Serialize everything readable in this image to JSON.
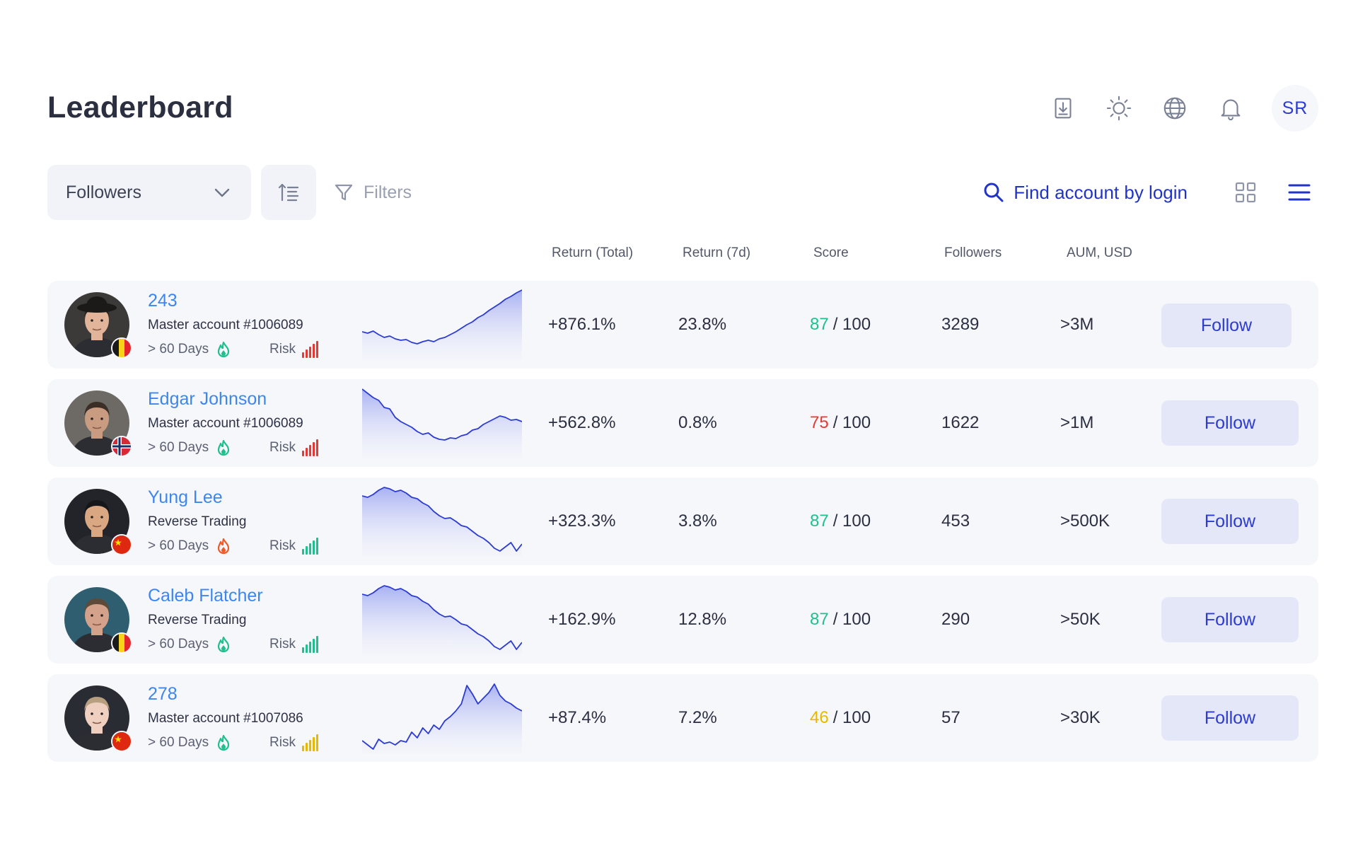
{
  "page": {
    "title": "Leaderboard"
  },
  "header": {
    "icons": [
      "download-icon",
      "sun-icon",
      "globe-icon",
      "bell-icon"
    ],
    "user_initials": "SR"
  },
  "toolbar": {
    "sort_by": "Followers",
    "filters_label": "Filters",
    "search_label": "Find account by login"
  },
  "columns": {
    "return_total": "Return (Total)",
    "return_7d": "Return (7d)",
    "score": "Score",
    "followers": "Followers",
    "aum": "AUM, USD"
  },
  "colors": {
    "accent": "#2c3bd1",
    "link": "#3d86f0",
    "score_good": "#1fbf8f",
    "score_bad": "#e53935",
    "score_mid": "#e6b800",
    "flame_good": "#1fbf8f",
    "flame_hot": "#f05a28"
  },
  "traders": [
    {
      "name": "243",
      "subtitle": "Master account #1006089",
      "days": "> 60 Days",
      "risk_label": "Risk",
      "risk_level": "high",
      "flame": "good",
      "flag": "belgium",
      "return_total": "+876.1%",
      "return_7d": "23.8%",
      "score": "87",
      "score_max": "/ 100",
      "score_status": "good",
      "followers": "3289",
      "aum": ">3M",
      "follow_label": "Follow",
      "spark": [
        60,
        62,
        59,
        64,
        68,
        66,
        70,
        72,
        71,
        75,
        77,
        74,
        72,
        74,
        70,
        68,
        64,
        60,
        55,
        50,
        46,
        40,
        36,
        30,
        25,
        20,
        14,
        10,
        5,
        1
      ]
    },
    {
      "name": "Edgar Johnson",
      "subtitle": "Master account #1006089",
      "days": "> 60 Days",
      "risk_label": "Risk",
      "risk_level": "high",
      "flame": "good",
      "flag": "norway",
      "return_total": "+562.8%",
      "return_7d": "0.8%",
      "score": "75",
      "score_max": "/ 100",
      "score_status": "bad",
      "followers": "1622",
      "aum": ">1M",
      "follow_label": "Follow",
      "spark": [
        2,
        8,
        14,
        18,
        28,
        30,
        42,
        48,
        52,
        56,
        62,
        66,
        64,
        70,
        73,
        74,
        71,
        72,
        68,
        66,
        60,
        58,
        52,
        48,
        44,
        40,
        42,
        46,
        45,
        48
      ]
    },
    {
      "name": "Yung Lee",
      "subtitle": "Reverse Trading",
      "days": "> 60 Days",
      "risk_label": "Risk",
      "risk_level": "low",
      "flame": "hot",
      "flag": "china",
      "return_total": "+323.3%",
      "return_7d": "3.8%",
      "score": "87",
      "score_max": "/ 100",
      "score_status": "good",
      "followers": "453",
      "aum": ">500K",
      "follow_label": "Follow",
      "spark": [
        14,
        16,
        12,
        6,
        2,
        4,
        8,
        6,
        10,
        16,
        18,
        24,
        28,
        36,
        42,
        46,
        45,
        50,
        56,
        58,
        64,
        70,
        74,
        80,
        88,
        92,
        86,
        80,
        92,
        82
      ]
    },
    {
      "name": "Caleb Flatcher",
      "subtitle": "Reverse Trading",
      "days": "> 60 Days",
      "risk_label": "Risk",
      "risk_level": "low",
      "flame": "good",
      "flag": "belgium",
      "return_total": "+162.9%",
      "return_7d": "12.8%",
      "score": "87",
      "score_max": "/ 100",
      "score_status": "good",
      "followers": "290",
      "aum": ">50K",
      "follow_label": "Follow",
      "spark": [
        14,
        16,
        12,
        6,
        2,
        4,
        8,
        6,
        10,
        16,
        18,
        24,
        28,
        36,
        42,
        46,
        45,
        50,
        56,
        58,
        64,
        70,
        74,
        80,
        88,
        92,
        86,
        80,
        92,
        82
      ]
    },
    {
      "name": "278",
      "subtitle": "Master account #1007086",
      "days": "> 60 Days",
      "risk_label": "Risk",
      "risk_level": "medium",
      "flame": "good",
      "flag": "china",
      "return_total": "+87.4%",
      "return_7d": "7.2%",
      "score": "46",
      "score_max": "/ 100",
      "score_status": "mid",
      "followers": "57",
      "aum": ">30K",
      "follow_label": "Follow",
      "spark": [
        82,
        88,
        94,
        80,
        86,
        84,
        88,
        82,
        84,
        70,
        78,
        64,
        72,
        60,
        66,
        54,
        48,
        40,
        30,
        4,
        16,
        30,
        22,
        14,
        2,
        18,
        26,
        30,
        36,
        40
      ]
    }
  ]
}
